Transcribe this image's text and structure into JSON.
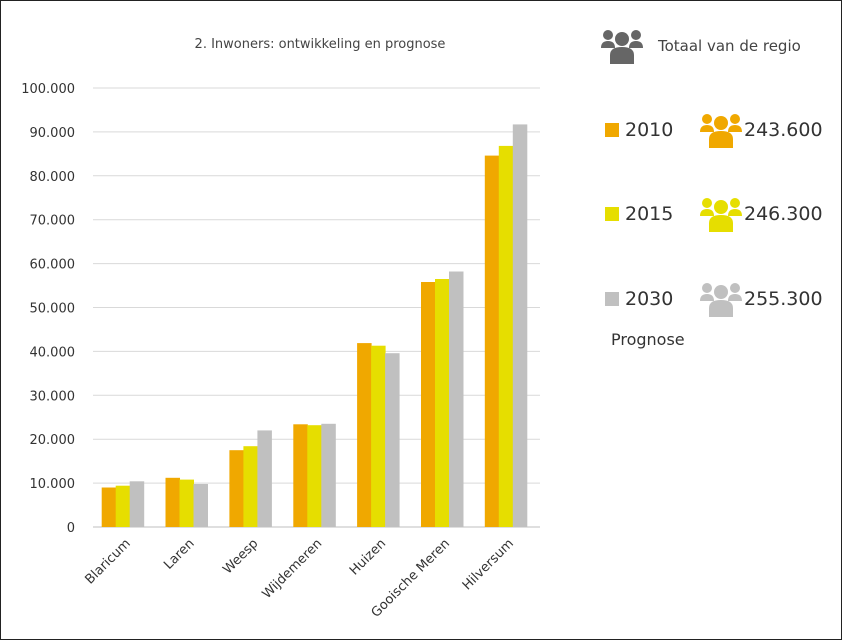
{
  "chart_data": {
    "type": "bar",
    "title": "2. Inwoners: ontwikkeling en prognose",
    "xlabel": "",
    "ylabel": "",
    "ylim": [
      0,
      100000
    ],
    "y_ticks": [
      "0",
      "10.000",
      "20.000",
      "30.000",
      "40.000",
      "50.000",
      "60.000",
      "70.000",
      "80.000",
      "90.000",
      "100.000"
    ],
    "grid": true,
    "categories": [
      "Blaricum",
      "Laren",
      "Weesp",
      "Wijdemeren",
      "Huizen",
      "Gooische Meren",
      "Hilversum"
    ],
    "series": [
      {
        "name": "2010",
        "color": "#F0A800",
        "values": [
          9000,
          11200,
          17500,
          23400,
          41900,
          55800,
          84600
        ]
      },
      {
        "name": "2015",
        "color": "#E6DE00",
        "values": [
          9400,
          10800,
          18400,
          23200,
          41300,
          56500,
          86800
        ]
      },
      {
        "name": "2030",
        "color": "#C0C0C0",
        "values": [
          10400,
          9800,
          22000,
          23500,
          39600,
          58200,
          91700
        ]
      }
    ]
  },
  "legend": {
    "region_title": "Totaal van de regio",
    "region_icon": "people-group-icon",
    "region_icon_color": "#666666",
    "entries": [
      {
        "year": "2010",
        "total": "243.600",
        "color": "#F0A800",
        "icon": "people-group-icon"
      },
      {
        "year": "2015",
        "total": "246.300",
        "color": "#E6DE00",
        "icon": "people-group-icon"
      },
      {
        "year": "2030",
        "total": "255.300",
        "color": "#C0C0C0",
        "icon": "people-group-icon"
      }
    ],
    "prognose_label": "Prognose"
  }
}
